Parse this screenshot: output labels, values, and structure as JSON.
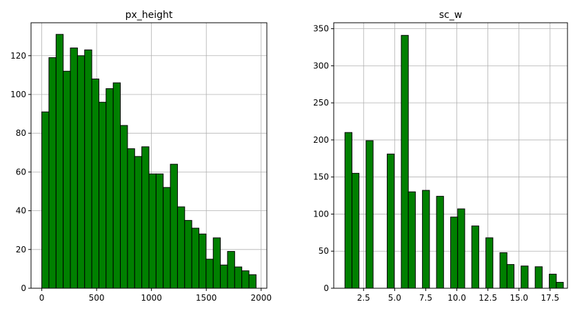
{
  "chart_data": [
    {
      "type": "bar",
      "title": "px_height",
      "xlabel": "",
      "ylabel": "",
      "bin_start": 0,
      "bin_width": 65.13,
      "values": [
        91,
        119,
        131,
        112,
        124,
        120,
        123,
        108,
        96,
        103,
        106,
        84,
        72,
        68,
        73,
        59,
        59,
        52,
        64,
        42,
        35,
        31,
        28,
        15,
        26,
        12,
        19,
        11,
        9,
        7
      ],
      "xlim": [
        -98,
        2052
      ],
      "ylim": [
        0,
        137
      ],
      "xticks": [
        0,
        500,
        1000,
        1500,
        2000
      ],
      "xtick_labels": [
        "0",
        "500",
        "1000",
        "1500",
        "2000"
      ],
      "yticks": [
        0,
        20,
        40,
        60,
        80,
        100,
        120
      ],
      "ytick_labels": [
        "0",
        "20",
        "40",
        "60",
        "80",
        "100",
        "120"
      ],
      "grid": true,
      "bar_color": "#008000",
      "edge_color": "#000000"
    },
    {
      "type": "bar",
      "title": "sc_w",
      "xlabel": "",
      "ylabel": "",
      "bin_start": 1,
      "bin_width": 0.5667,
      "values": [
        210,
        155,
        0,
        199,
        0,
        0,
        181,
        0,
        341,
        130,
        0,
        132,
        0,
        124,
        0,
        96,
        107,
        0,
        84,
        0,
        68,
        0,
        48,
        32,
        0,
        30,
        0,
        29,
        0,
        19,
        8
      ],
      "xlim": [
        0.1,
        18.9
      ],
      "ylim": [
        0,
        358
      ],
      "xticks": [
        2.5,
        5.0,
        7.5,
        10.0,
        12.5,
        15.0,
        17.5
      ],
      "xtick_labels": [
        "2.5",
        "5.0",
        "7.5",
        "10.0",
        "12.5",
        "15.0",
        "17.5"
      ],
      "yticks": [
        0,
        50,
        100,
        150,
        200,
        250,
        300,
        350
      ],
      "ytick_labels": [
        "0",
        "50",
        "100",
        "150",
        "200",
        "250",
        "300",
        "350"
      ],
      "grid": true,
      "bar_color": "#008000",
      "edge_color": "#000000"
    }
  ]
}
